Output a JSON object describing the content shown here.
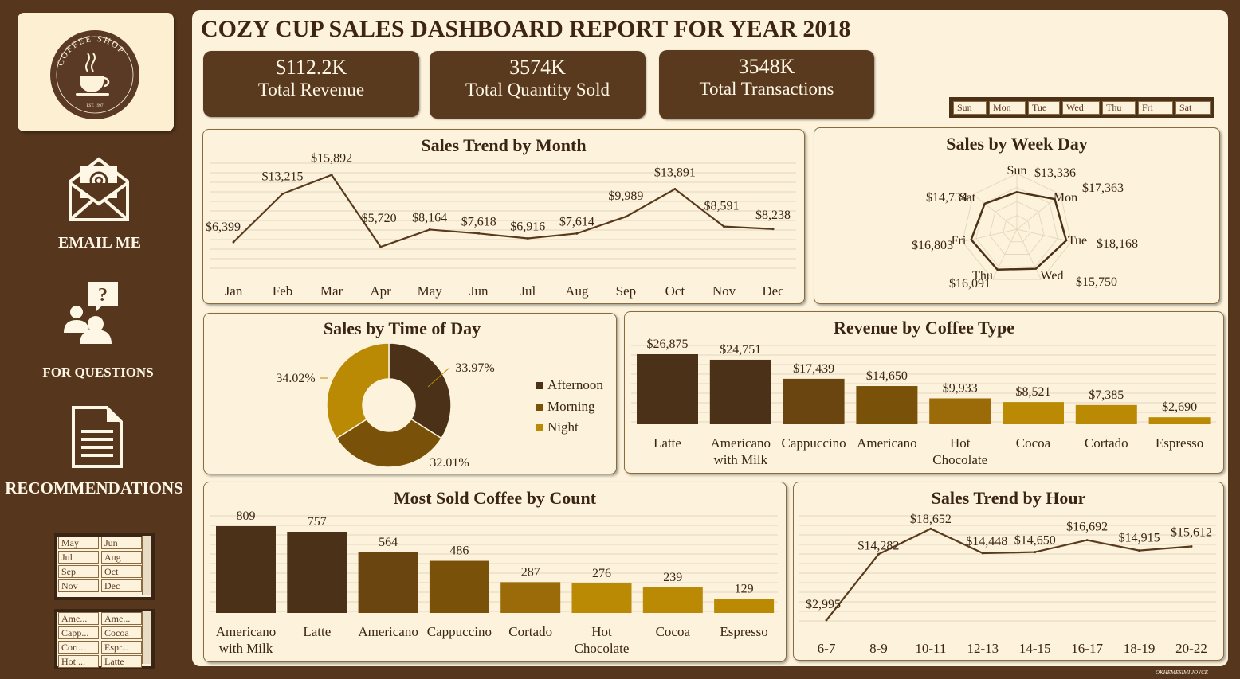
{
  "header": {
    "title": "COZY CUP SALES DASHBOARD REPORT FOR YEAR 2018"
  },
  "logo": {
    "ring_text": "COFFEE SHOP",
    "est": "EST. 1997"
  },
  "sidebar": {
    "email": "EMAIL ME",
    "questions": "FOR QUESTIONS",
    "recommendations": "RECOMMENDATIONS"
  },
  "kpis": [
    {
      "value": "$112.2K",
      "label": "Total Revenue"
    },
    {
      "value": "3574K",
      "label": "Total Quantity Sold"
    },
    {
      "value": "3548K",
      "label": "Total Transactions"
    }
  ],
  "day_slicer": [
    "Sun",
    "Mon",
    "Tue",
    "Wed",
    "Thu",
    "Fri",
    "Sat"
  ],
  "month_slicer": [
    "May",
    "Jun",
    "Jul",
    "Aug",
    "Sep",
    "Oct",
    "Nov",
    "Dec"
  ],
  "coffee_slicer": [
    "Ame...",
    "Ame...",
    "Capp...",
    "Cocoa",
    "Cort...",
    "Espr...",
    "Hot ...",
    "Latte"
  ],
  "footer": {
    "credit": "OKHEMESIMI JOYCE"
  },
  "colors": {
    "dark": "#4a3118",
    "mid": "#7a5108",
    "light": "#bb8a05",
    "bg": "#fdf3dc",
    "sidebar": "#56361c"
  },
  "chart_data": [
    {
      "type": "line",
      "title": "Sales Trend by Month",
      "x": [
        "Jan",
        "Feb",
        "Mar",
        "Apr",
        "May",
        "Jun",
        "Jul",
        "Aug",
        "Sep",
        "Oct",
        "Nov",
        "Dec"
      ],
      "values": [
        6399,
        13215,
        15892,
        5720,
        8164,
        7618,
        6916,
        7614,
        9989,
        13891,
        8591,
        8238
      ],
      "labels": [
        "$6,399",
        "$13,215",
        "$15,892",
        "$5,720",
        "$8,164",
        "$7,618",
        "$6,916",
        "$7,614",
        "$9,989",
        "$13,891",
        "$8,591",
        "$8,238"
      ],
      "grid": true
    },
    {
      "type": "radar",
      "title": "Sales by Week Day",
      "categories": [
        "Sun",
        "Mon",
        "Tue",
        "Wed",
        "Thu",
        "Fri",
        "Sat"
      ],
      "values": [
        13336,
        17363,
        18168,
        15750,
        16091,
        16803,
        14734
      ],
      "labels": [
        "$13,336",
        "$17,363",
        "$18,168",
        "$15,750",
        "$16,091",
        "$16,803",
        "$14,734"
      ]
    },
    {
      "type": "pie",
      "title": "Sales by Time of Day",
      "donut": true,
      "categories": [
        "Afternoon",
        "Morning",
        "Night"
      ],
      "values": [
        33.97,
        32.01,
        34.02
      ],
      "labels": [
        "33.97%",
        "32.01%",
        "34.02%"
      ],
      "legend": "right"
    },
    {
      "type": "bar",
      "title": "Revenue by Coffee Type",
      "categories": [
        "Latte",
        "Americano with Milk",
        "Cappuccino",
        "Americano",
        "Hot Chocolate",
        "Cocoa",
        "Cortado",
        "Espresso"
      ],
      "values": [
        26875,
        24751,
        17439,
        14650,
        9933,
        8521,
        7385,
        2690
      ],
      "labels": [
        "$26,875",
        "$24,751",
        "$17,439",
        "$14,650",
        "$9,933",
        "$8,521",
        "$7,385",
        "$2,690"
      ],
      "grid": true
    },
    {
      "type": "bar",
      "title": "Most Sold Coffee by Count",
      "categories": [
        "Americano with Milk",
        "Latte",
        "Americano",
        "Cappuccino",
        "Cortado",
        "Hot Chocolate",
        "Cocoa",
        "Espresso"
      ],
      "values": [
        809,
        757,
        564,
        486,
        287,
        276,
        239,
        129
      ],
      "labels": [
        "809",
        "757",
        "564",
        "486",
        "287",
        "276",
        "239",
        "129"
      ],
      "grid": true
    },
    {
      "type": "line",
      "title": "Sales Trend by Hour",
      "x": [
        "6-7",
        "8-9",
        "10-11",
        "12-13",
        "14-15",
        "16-17",
        "18-19",
        "20-22"
      ],
      "values": [
        2995,
        14282,
        18652,
        14448,
        14650,
        16692,
        14915,
        15612
      ],
      "labels": [
        "$2,995",
        "$14,282",
        "$18,652",
        "$14,448",
        "$14,650",
        "$16,692",
        "$14,915",
        "$15,612"
      ],
      "grid": true
    }
  ]
}
